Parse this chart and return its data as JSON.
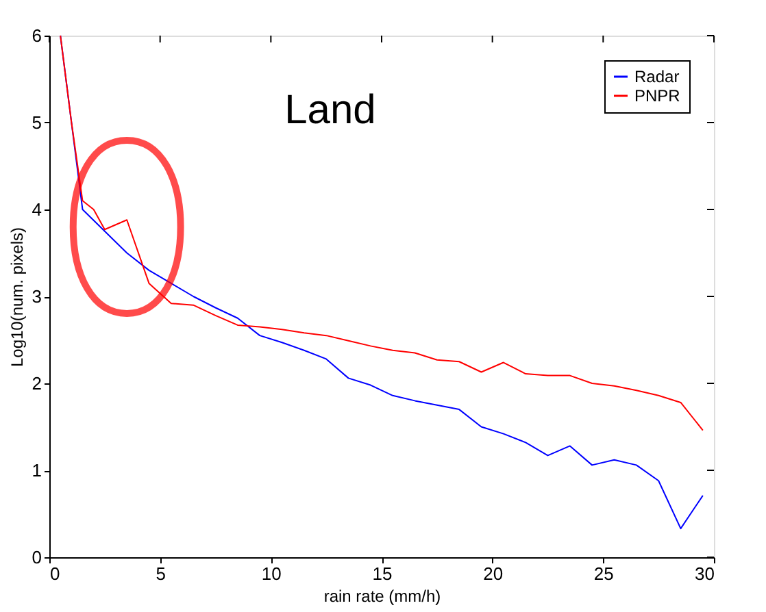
{
  "chart_data": {
    "type": "line",
    "xlabel": "rain rate (mm/h)",
    "ylabel": "Log10(num. pixels)",
    "xlim": [
      0,
      30
    ],
    "xticks": [
      0,
      5,
      10,
      15,
      20,
      25,
      30
    ],
    "ylim": [
      0,
      6
    ],
    "yticks": [
      0,
      1,
      2,
      3,
      4,
      5,
      6
    ],
    "grid": false,
    "legend": "top right",
    "marker": "none",
    "line_style": "solid",
    "annotations": [
      "Land"
    ],
    "series": [
      {
        "name": "Radar",
        "color": "#0000ff",
        "x": [
          0.5,
          1.0,
          1.5,
          2.5,
          3.5,
          4.5,
          5.5,
          6.5,
          7.5,
          8.5,
          9.5,
          10.5,
          11.5,
          12.5,
          13.5,
          14.5,
          15.5,
          16.5,
          17.5,
          18.5,
          19.5,
          20.5,
          21.5,
          22.5,
          23.5,
          24.5,
          25.5,
          26.5,
          27.5,
          28.5,
          29.5
        ],
        "values": [
          6.0,
          5.0,
          4.0,
          3.75,
          3.5,
          3.3,
          3.15,
          3.0,
          2.87,
          2.75,
          2.55,
          2.47,
          2.38,
          2.28,
          2.06,
          1.98,
          1.86,
          1.8,
          1.75,
          1.7,
          1.5,
          1.42,
          1.32,
          1.17,
          1.28,
          1.06,
          1.12,
          1.06,
          0.88,
          0.33,
          0.71
        ]
      },
      {
        "name": "PNPR",
        "color": "#ff0000",
        "x": [
          0.5,
          1.0,
          1.5,
          2.0,
          2.5,
          3.5,
          4.5,
          5.5,
          6.5,
          7.5,
          8.5,
          9.5,
          10.5,
          11.5,
          12.5,
          13.5,
          14.5,
          15.5,
          16.5,
          17.5,
          18.5,
          19.5,
          20.5,
          21.5,
          22.5,
          23.5,
          24.5,
          25.5,
          26.5,
          27.5,
          28.5,
          29.5
        ],
        "values": [
          6.0,
          5.0,
          4.1,
          4.0,
          3.77,
          3.88,
          3.15,
          2.92,
          2.9,
          2.78,
          2.67,
          2.65,
          2.62,
          2.58,
          2.55,
          2.49,
          2.43,
          2.38,
          2.35,
          2.27,
          2.25,
          2.13,
          2.24,
          2.11,
          2.09,
          2.09,
          2.0,
          1.97,
          1.92,
          1.86,
          1.78,
          1.46
        ]
      }
    ]
  }
}
